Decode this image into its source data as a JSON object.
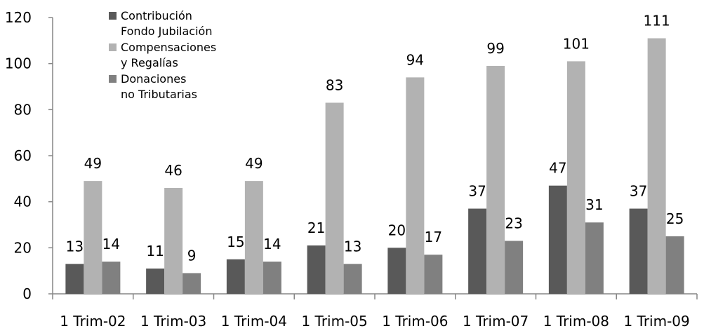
{
  "chart_data": {
    "type": "bar",
    "title": "",
    "xlabel": "",
    "ylabel": "",
    "ylim": [
      0,
      120
    ],
    "yticks": [
      0,
      20,
      40,
      60,
      80,
      100,
      120
    ],
    "grid": false,
    "legend_position": "top-left",
    "categories": [
      "1 Trim-02",
      "1 Trim-03",
      "1 Trim-04",
      "1 Trim-05",
      "1 Trim-06",
      "1 Trim-07",
      "1 Trim-08",
      "1 Trim-09"
    ],
    "series": [
      {
        "name": "Contribución Fondo Jubilación",
        "legend_lines": [
          "Contribución",
          "Fondo Jubilación"
        ],
        "color": "#595959",
        "values": [
          13,
          11,
          15,
          21,
          20,
          37,
          47,
          37
        ]
      },
      {
        "name": "Compensaciones y Regalías",
        "legend_lines": [
          "Compensaciones",
          "y Regalías"
        ],
        "color": "#b2b2b2",
        "values": [
          49,
          46,
          49,
          83,
          94,
          99,
          101,
          111
        ]
      },
      {
        "name": "Donaciones no Tributarias",
        "legend_lines": [
          "Donaciones",
          "no Tributarias"
        ],
        "color": "#808080",
        "values": [
          14,
          9,
          14,
          13,
          17,
          23,
          31,
          25
        ]
      }
    ]
  }
}
